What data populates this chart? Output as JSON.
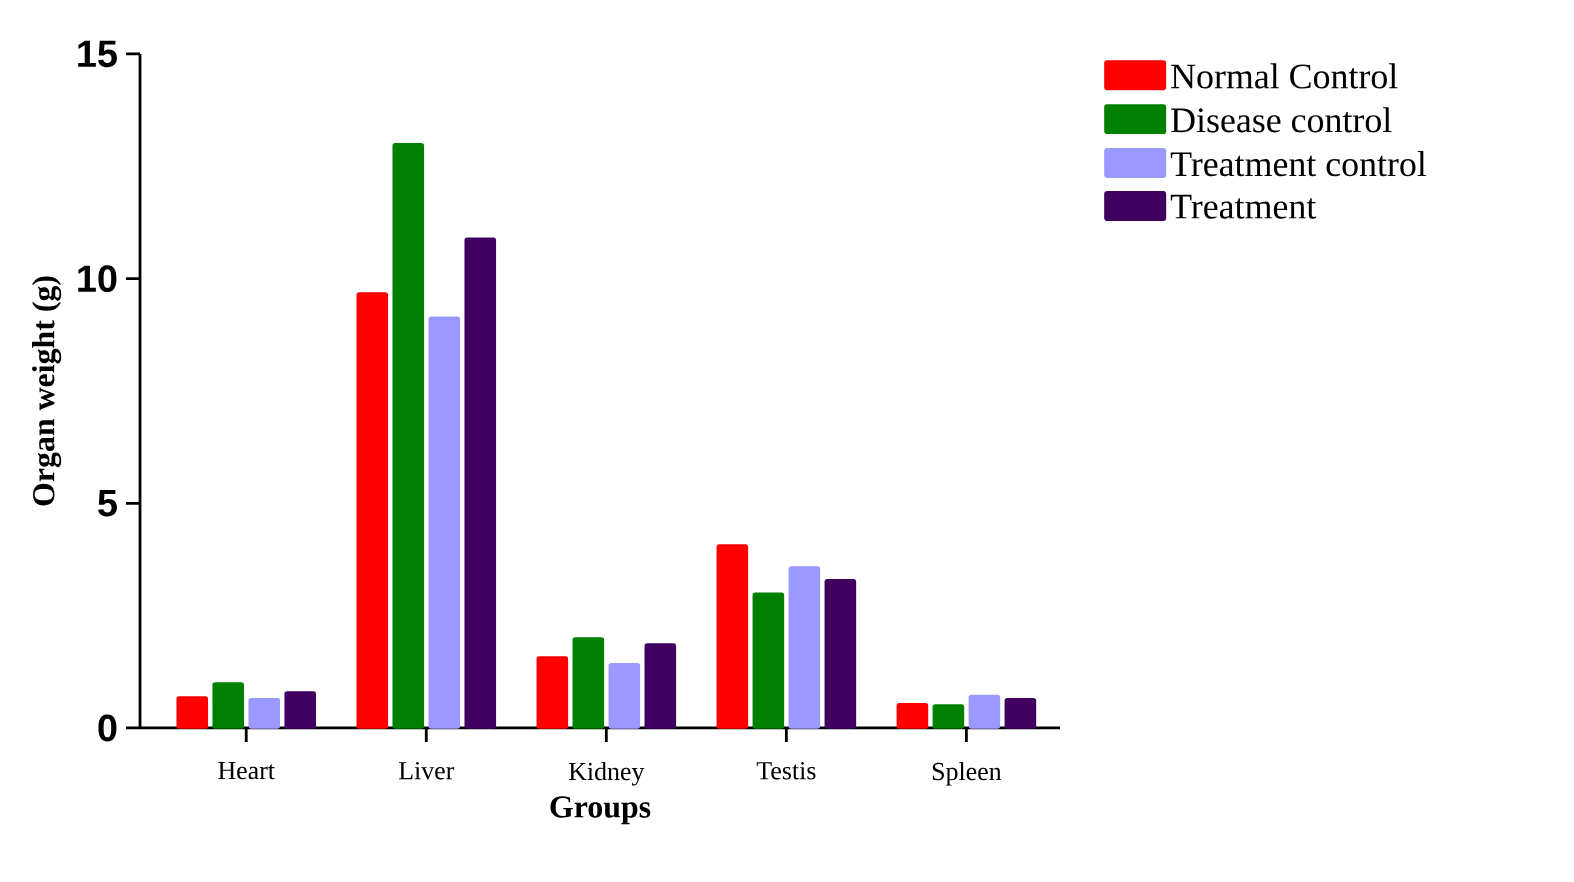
{
  "chart_data": {
    "type": "bar",
    "xlabel": "Groups",
    "ylabel": "Organ weight (g)",
    "categories": [
      "Heart",
      "Liver",
      "Kidney",
      "Testis",
      "Spleen"
    ],
    "series": [
      {
        "name": "Normal Control",
        "color": "#ff0000",
        "values": [
          0.69,
          9.68,
          1.58,
          4.07,
          0.54
        ]
      },
      {
        "name": "Disease control",
        "color": "#008000",
        "values": [
          1.0,
          13.0,
          2.0,
          3.0,
          0.51
        ]
      },
      {
        "name": "Treatment control",
        "color": "#9999ff",
        "values": [
          0.65,
          9.14,
          1.43,
          3.58,
          0.72
        ]
      },
      {
        "name": "Treatment",
        "color": "#3f0060",
        "values": [
          0.8,
          10.9,
          1.87,
          3.3,
          0.65
        ]
      }
    ],
    "ylim": [
      0,
      15
    ],
    "yticks": [
      0,
      5,
      10,
      15
    ],
    "grid": false,
    "legend": "top right"
  }
}
